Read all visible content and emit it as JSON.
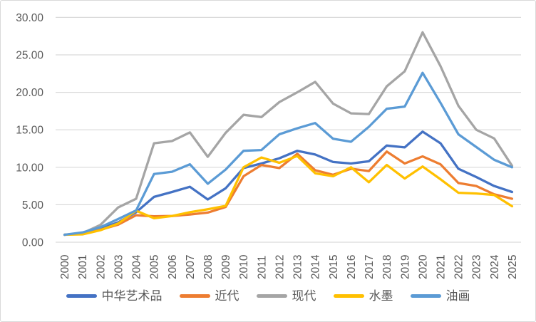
{
  "chart_data": {
    "type": "line",
    "title": "",
    "xlabel": "",
    "ylabel": "",
    "x": [
      2000,
      2001,
      2002,
      2003,
      2004,
      2005,
      2006,
      2007,
      2008,
      2009,
      2010,
      2011,
      2012,
      2013,
      2014,
      2015,
      2016,
      2017,
      2018,
      2019,
      2020,
      2021,
      2022,
      2023,
      2024,
      2025
    ],
    "series": [
      {
        "name": "中华艺术品",
        "color": "#4472C4",
        "values": [
          1.0,
          1.15,
          1.8,
          2.65,
          4.0,
          6.05,
          6.7,
          7.4,
          5.7,
          7.2,
          9.9,
          10.5,
          11.2,
          12.2,
          11.7,
          10.7,
          10.5,
          10.8,
          12.9,
          12.65,
          14.75,
          13.2,
          9.8,
          8.7,
          7.5,
          6.7
        ]
      },
      {
        "name": "近代",
        "color": "#ED7D31",
        "values": [
          1.0,
          1.1,
          1.65,
          2.35,
          3.6,
          3.45,
          3.5,
          3.7,
          3.95,
          4.7,
          8.8,
          10.3,
          9.9,
          11.8,
          9.6,
          9.0,
          9.8,
          9.5,
          12.1,
          10.5,
          11.45,
          10.4,
          7.9,
          7.5,
          6.4,
          5.8
        ]
      },
      {
        "name": "现代",
        "color": "#A5A5A5",
        "values": [
          1.0,
          1.2,
          2.3,
          4.65,
          5.8,
          13.2,
          13.5,
          14.65,
          11.4,
          14.6,
          17.0,
          16.7,
          18.7,
          20.0,
          21.4,
          18.5,
          17.2,
          17.1,
          20.8,
          22.8,
          28.0,
          23.5,
          18.2,
          15.0,
          13.85,
          10.2
        ]
      },
      {
        "name": "水墨",
        "color": "#FFC000",
        "values": [
          1.0,
          1.05,
          1.6,
          2.5,
          4.2,
          3.2,
          3.5,
          4.0,
          4.4,
          4.85,
          10.0,
          11.3,
          10.6,
          11.5,
          9.2,
          8.8,
          10.0,
          8.0,
          10.3,
          8.5,
          10.1,
          8.4,
          6.6,
          6.5,
          6.3,
          4.8
        ]
      },
      {
        "name": "油画",
        "color": "#5B9BD5",
        "values": [
          1.0,
          1.3,
          2.0,
          3.1,
          4.25,
          9.1,
          9.4,
          10.4,
          7.8,
          9.7,
          12.2,
          12.3,
          14.4,
          15.2,
          15.9,
          13.8,
          13.4,
          15.4,
          17.8,
          18.1,
          22.6,
          18.6,
          14.4,
          12.7,
          11.0,
          10.0
        ]
      }
    ],
    "ylim": [
      0,
      30
    ],
    "ytick_step": 5,
    "ytick_labels": [
      "0.00",
      "5.00",
      "10.00",
      "15.00",
      "20.00",
      "25.00",
      "30.00"
    ],
    "x_tick_rotation": 90,
    "grid": true,
    "legend_position": "bottom"
  },
  "styles": {
    "grid_color": "#D9D9D9",
    "axis_text_color": "#595959",
    "legend_text_color": "#595959",
    "background": "#FFFFFF",
    "border_color": "#D9D9D9"
  }
}
